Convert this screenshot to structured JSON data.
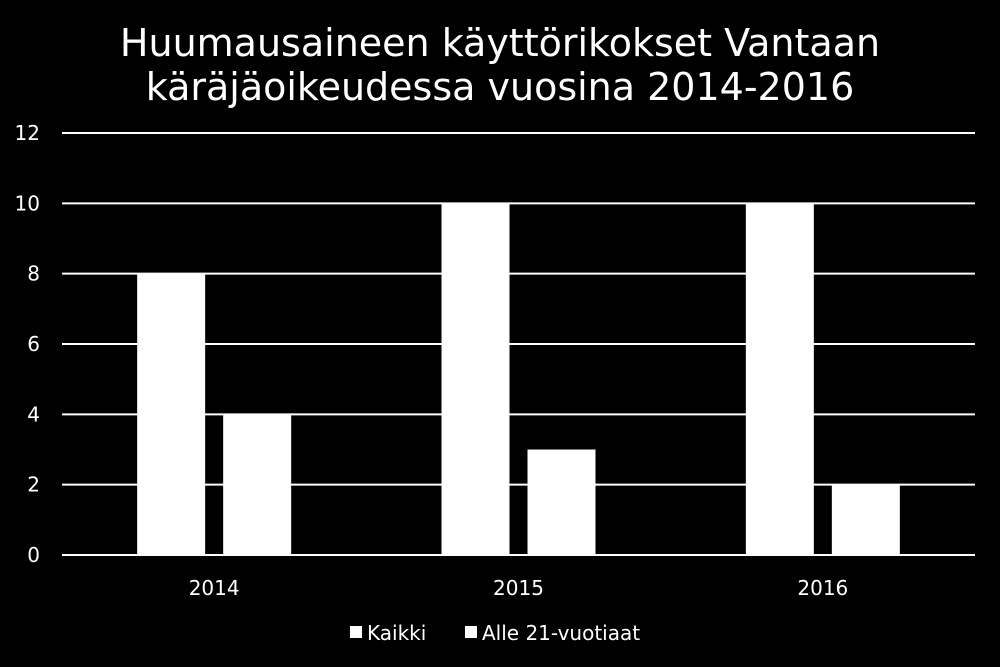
{
  "chart_data": {
    "type": "bar",
    "title_lines": [
      "Huumausaineen käyttörikokset Vantaan",
      "käräjäoikeudessa vuosina 2014-2016"
    ],
    "categories": [
      "2014",
      "2015",
      "2016"
    ],
    "series": [
      {
        "name": "Kaikki",
        "values": [
          8,
          10,
          10
        ]
      },
      {
        "name": "Alle 21-vuotiaat",
        "values": [
          4,
          3,
          2
        ]
      }
    ],
    "ylim": [
      0,
      12
    ],
    "yticks": [
      0,
      2,
      4,
      6,
      8,
      10,
      12
    ],
    "grid": true,
    "legend_position": "bottom",
    "colors": {
      "background": "#000000",
      "text": "#ffffff",
      "gridline": "#ffffff",
      "bar": "#ffffff"
    }
  }
}
